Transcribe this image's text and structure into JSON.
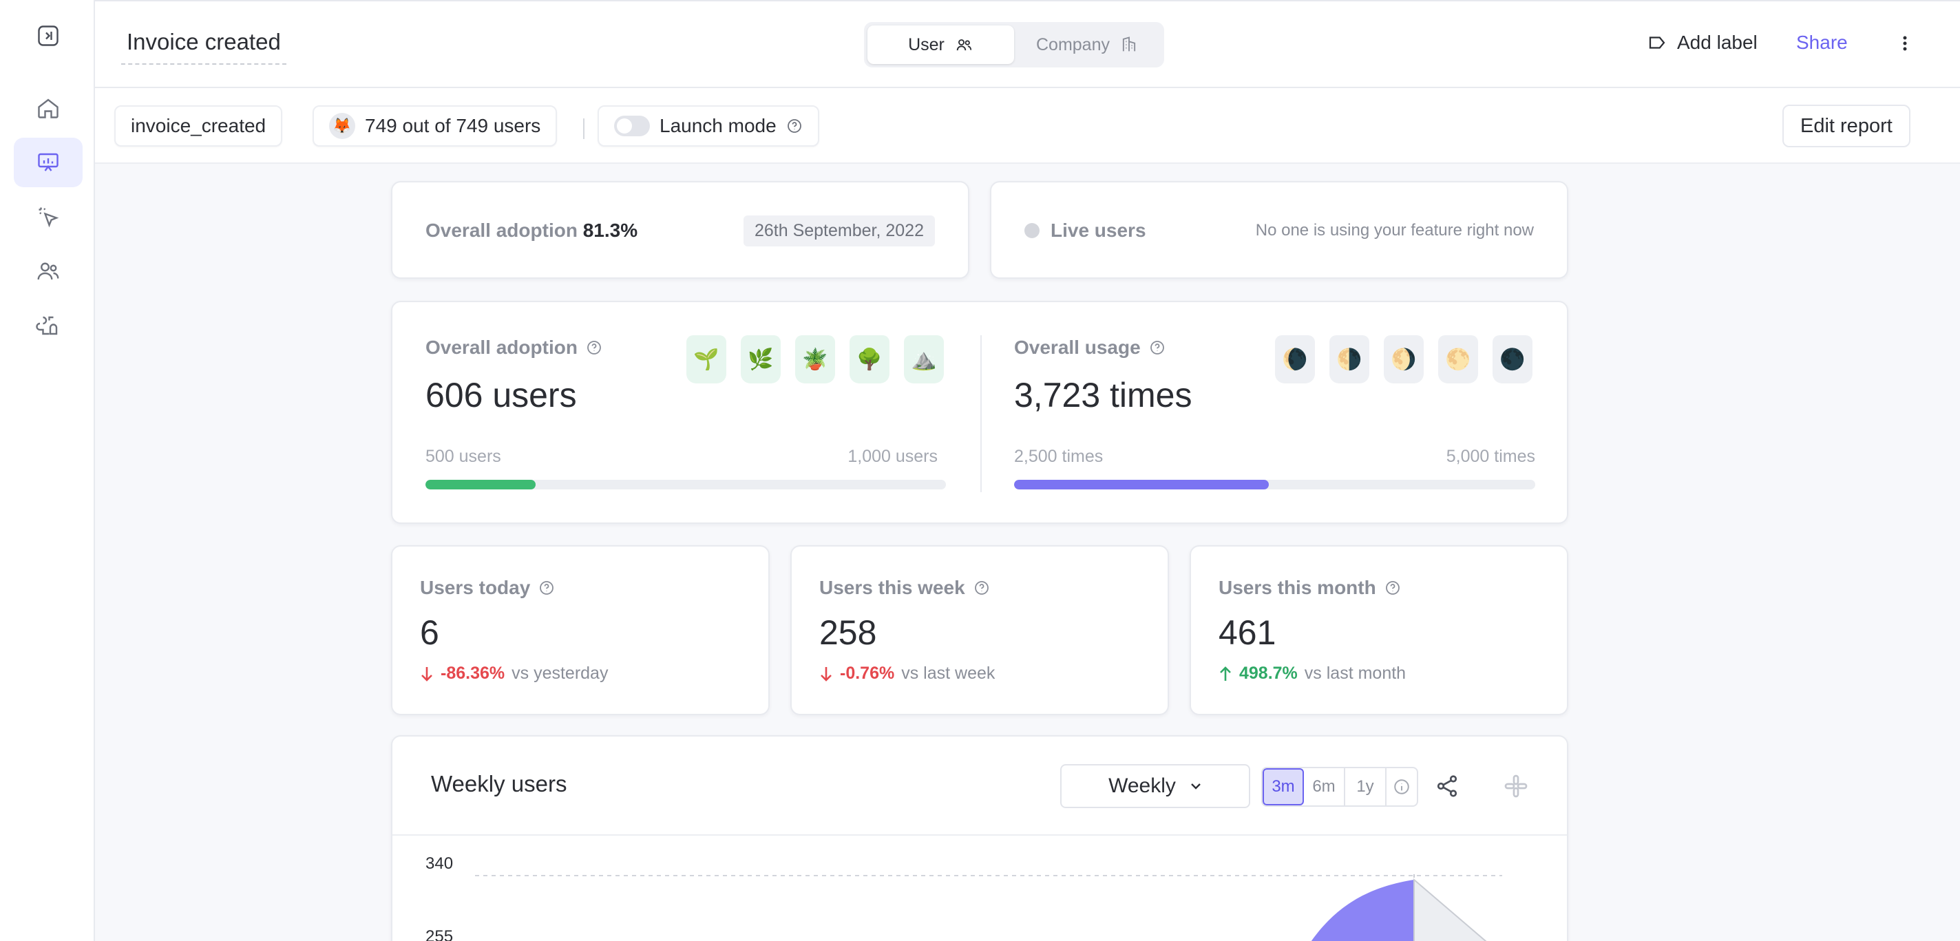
{
  "header": {
    "title": "Invoice created",
    "segments": [
      {
        "label": "User"
      },
      {
        "label": "Company"
      }
    ],
    "add_label": "Add label",
    "share": "Share"
  },
  "toolbar": {
    "event_chip": "invoice_created",
    "users_chip": "749 out of 749 users",
    "launch_mode": "Launch mode",
    "edit_report": "Edit report"
  },
  "adoption_summary": {
    "label": "Overall adoption",
    "value": "81.3%",
    "date": "26th September, 2022"
  },
  "live_users": {
    "label": "Live users",
    "message": "No one is using your feature right now"
  },
  "adoption": {
    "label": "Overall adoption",
    "value": "606 users",
    "range_min": "500 users",
    "range_max": "1,000 users",
    "progress": 0.212,
    "color": "#3dbb73",
    "badges": [
      "🌱",
      "🌿",
      "🪴",
      "🌳",
      "⛰️"
    ]
  },
  "usage": {
    "label": "Overall usage",
    "value": "3,723 times",
    "range_min": "2,500 times",
    "range_max": "5,000 times",
    "progress": 0.489,
    "color": "#7b74f2",
    "badges": [
      "🌘",
      "🌗",
      "🌖",
      "🌕",
      "🌑"
    ]
  },
  "stats": [
    {
      "label": "Users today",
      "value": "6",
      "delta": "-86.36%",
      "compare": "vs yesterday",
      "direction": "down"
    },
    {
      "label": "Users this week",
      "value": "258",
      "delta": "-0.76%",
      "compare": "vs last week",
      "direction": "down"
    },
    {
      "label": "Users this month",
      "value": "461",
      "delta": "498.7%",
      "compare": "vs last month",
      "direction": "up"
    }
  ],
  "weekly_chart": {
    "title": "Weekly users",
    "period": "Weekly",
    "ranges": [
      "3m",
      "6m",
      "1y"
    ],
    "active_range": "3m",
    "y_ticks": [
      "340",
      "255"
    ],
    "fill_color": "#8b84f5"
  }
}
